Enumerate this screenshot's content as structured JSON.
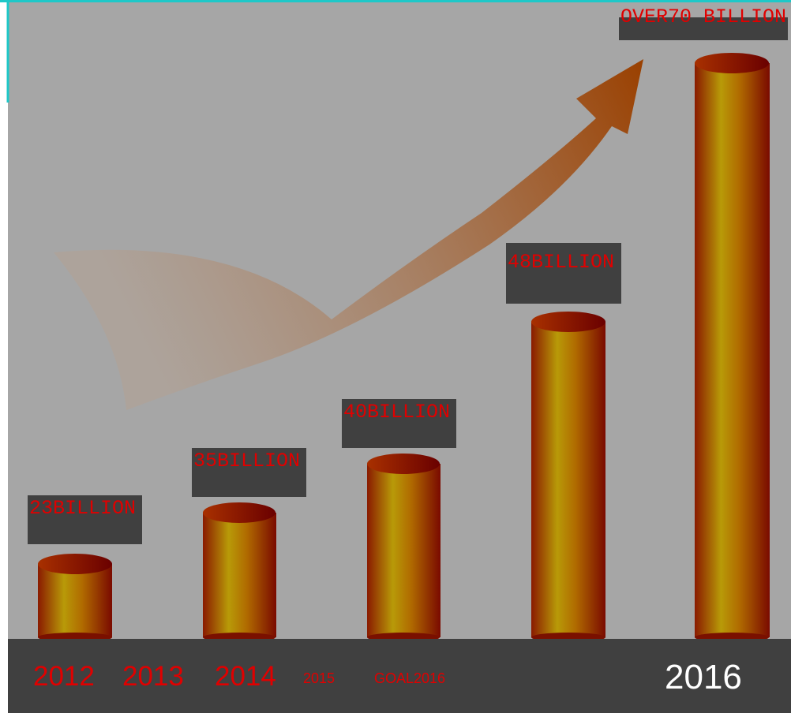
{
  "tags": [
    "23BILLION",
    "35BILLION",
    "40BILLION",
    "48BILLION",
    "OVER70 BILLION"
  ],
  "footer": [
    "2012",
    "2013",
    "2014",
    "2015",
    "GOAL2016",
    "2016"
  ]
}
